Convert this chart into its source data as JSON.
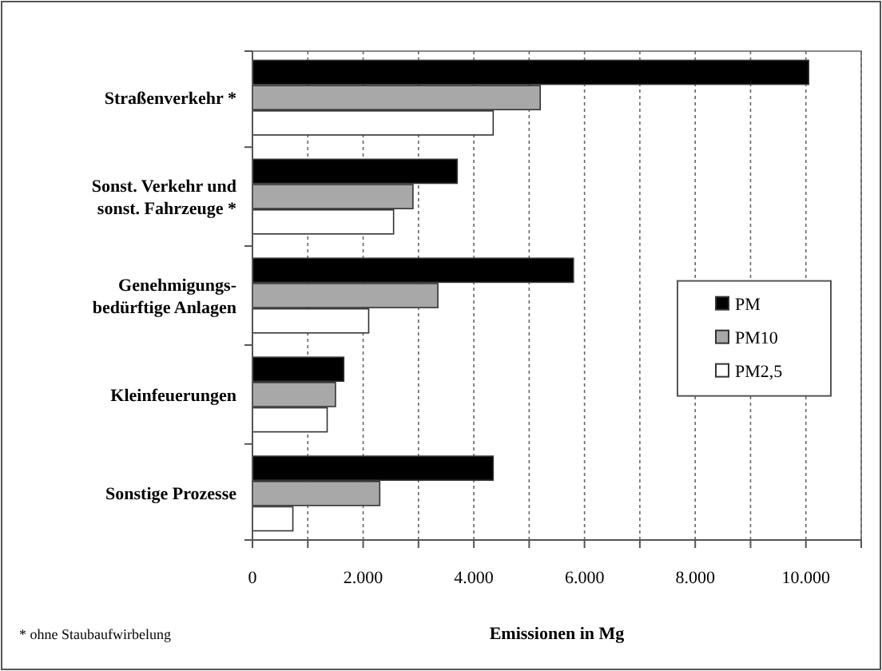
{
  "chart_data": {
    "type": "bar",
    "orientation": "horizontal",
    "categories": [
      "Straßenverkehr *",
      "Sonst. Verkehr und\nsonst. Fahrzeuge *",
      "Genehmigungs-\nbedürftige Anlagen",
      "Kleinfeuerungen",
      "Sonstige Prozesse"
    ],
    "series": [
      {
        "name": "PM",
        "color": "#000000",
        "values": [
          10050,
          3700,
          5800,
          1650,
          4350
        ]
      },
      {
        "name": "PM10",
        "color": "#a8a8a8",
        "values": [
          5200,
          2900,
          3350,
          1500,
          2300
        ]
      },
      {
        "name": "PM2,5",
        "color": "#ffffff",
        "values": [
          4350,
          2550,
          2100,
          1350,
          730
        ]
      }
    ],
    "xlim": [
      0,
      11000
    ],
    "xticks": [
      0,
      {
        "value": 1000,
        "label": null
      },
      {
        "value": 2000,
        "label": "2.000"
      },
      {
        "value": 3000,
        "label": null
      },
      {
        "value": 4000,
        "label": "4.000"
      },
      {
        "value": 5000,
        "label": null
      },
      {
        "value": 6000,
        "label": "6.000"
      },
      {
        "value": 7000,
        "label": null
      },
      {
        "value": 8000,
        "label": "8.000"
      },
      {
        "value": 9000,
        "label": null
      },
      {
        "value": 10000,
        "label": "10.000"
      },
      {
        "value": 11000,
        "label": null
      }
    ],
    "xlabel": "Emissionen in Mg",
    "annotations": [
      "* ohne Staubaufwirbelung"
    ],
    "grid": "x",
    "legend": "right"
  }
}
